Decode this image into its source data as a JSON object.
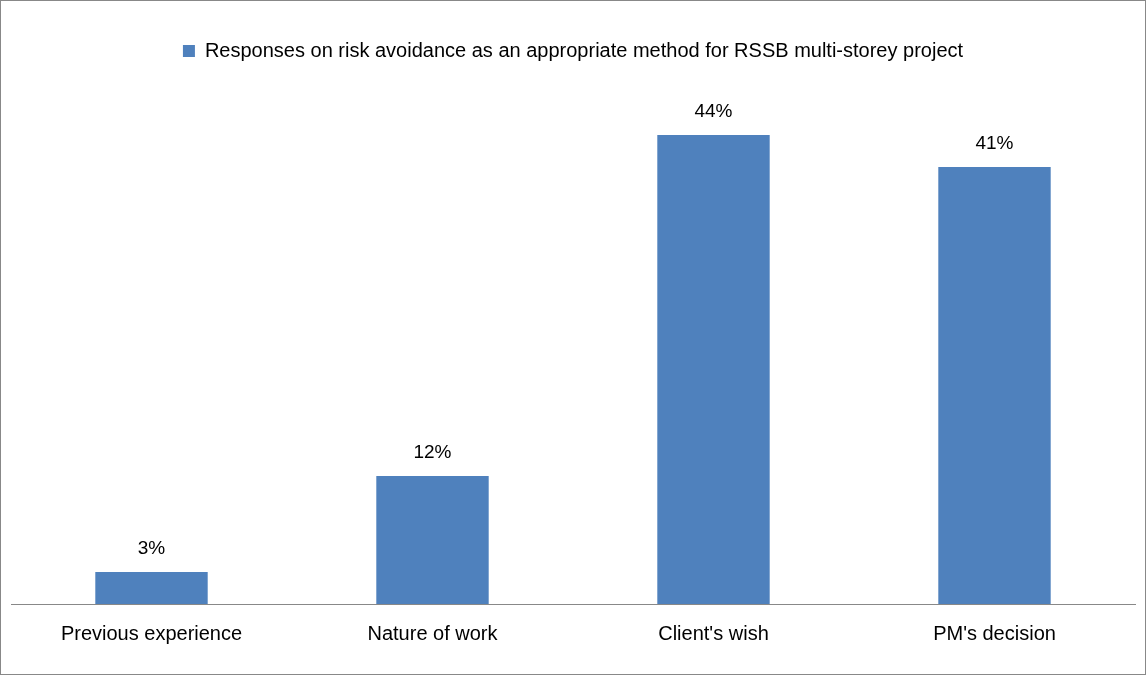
{
  "chart_data": {
    "type": "bar",
    "categories": [
      "Previous experience",
      "Nature of work",
      "Client's wish",
      "PM's decision"
    ],
    "series": [
      {
        "name": "Responses on risk avoidance as an appropriate method for RSSB multi-storey project",
        "color": "#4f81bd",
        "values": [
          3,
          12,
          44,
          41
        ],
        "value_labels": [
          "3%",
          "12%",
          "44%",
          "41%"
        ]
      }
    ],
    "legend": "top",
    "grid": false
  }
}
